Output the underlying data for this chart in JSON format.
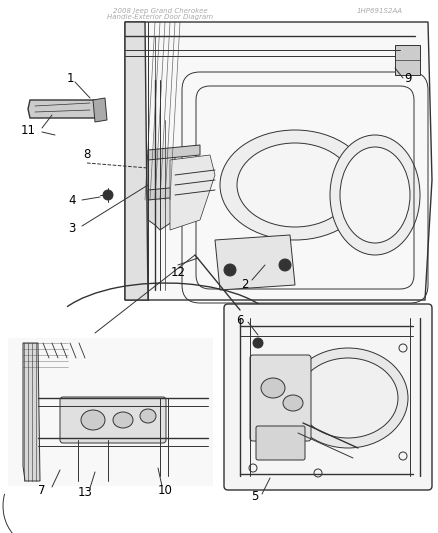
{
  "background_color": "#ffffff",
  "line_color": "#333333",
  "label_color": "#000000",
  "fig_width": 4.38,
  "fig_height": 5.33,
  "dpi": 100,
  "header_left": "2008 Jeep Grand Cherokee",
  "header_right": "1HP691S2AA",
  "header_sub": "Handle-Exterior Door Diagram"
}
